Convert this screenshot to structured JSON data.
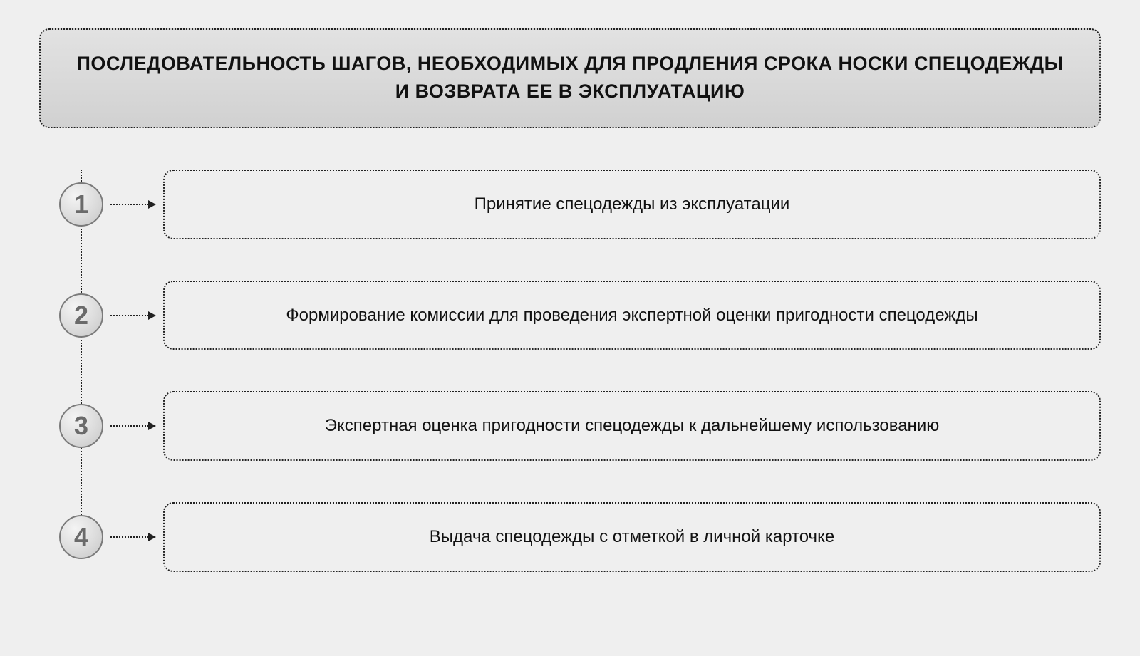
{
  "diagram": {
    "type": "flowchart",
    "title": "ПОСЛЕДОВАТЕЛЬНОСТЬ ШАГОВ, НЕОБХОДИМЫХ ДЛЯ ПРОДЛЕНИЯ СРОКА НОСКИ СПЕЦОДЕЖДЫ И ВОЗВРАТА ЕЕ В ЭКСПЛУАТАЦИЮ",
    "title_fontsize": 27,
    "title_fontweight": 900,
    "title_color": "#111111",
    "title_background_gradient": [
      "#e2e2e2",
      "#d1d1d1"
    ],
    "background_color": "#efefef",
    "border_style": "dotted",
    "border_color": "#222222",
    "border_radius": 14,
    "spine": {
      "color": "#222222",
      "style": "dotted",
      "width": 2
    },
    "arrow": {
      "color": "#222222",
      "style": "dotted",
      "head_size": 11
    },
    "badge": {
      "diameter": 62,
      "border_color": "#7a7a7a",
      "text_color": "#6a6a6a",
      "fontsize": 36,
      "background_gradient": [
        "#f4f4f4",
        "#dcdcdc",
        "#c6c6c6"
      ]
    },
    "step_box": {
      "border_color": "#222222",
      "border_style": "dotted",
      "border_radius": 14,
      "background": "#efefef",
      "fontsize": 24,
      "text_color": "#111111"
    },
    "steps": [
      {
        "num": "1",
        "label": "Принятие спецодежды из эксплуатации"
      },
      {
        "num": "2",
        "label": "Формирование комиссии для проведения экспертной оценки пригодности спецодежды"
      },
      {
        "num": "3",
        "label": "Экспертная оценка пригодности спецодежды к дальнейшему использованию"
      },
      {
        "num": "4",
        "label": "Выдача спецодежды с отметкой в личной карточке"
      }
    ]
  }
}
